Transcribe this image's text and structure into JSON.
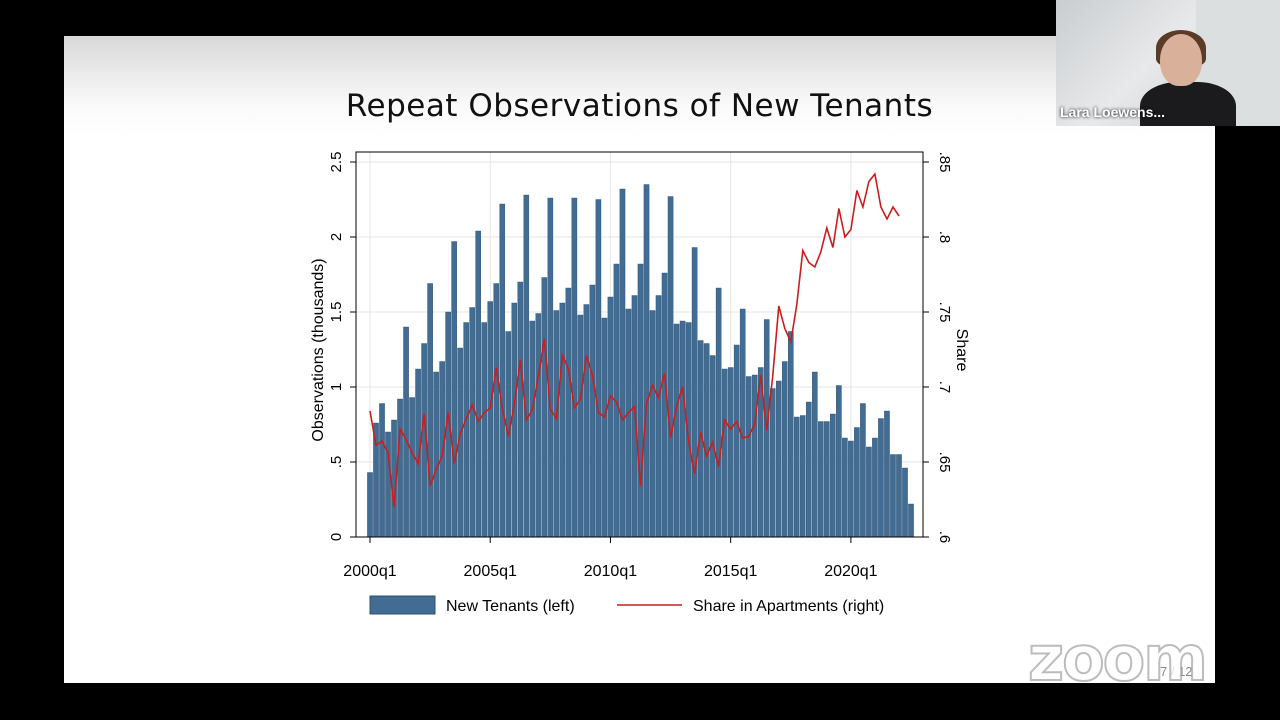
{
  "slide": {
    "title": "Repeat Observations of New Tenants",
    "page": "7 / 12"
  },
  "video": {
    "participant_name": "Lara Loewens..."
  },
  "watermark": "zoom",
  "colors": {
    "bar": "#436c92",
    "line": "#cc1d1d"
  },
  "chart_data": {
    "type": "bar",
    "x_label": "",
    "y_left_label": "Observations (thousands)",
    "y_right_label": "Share",
    "y_left_ticks": [
      "0",
      ".5",
      "1",
      "1.5",
      "2",
      "2.5"
    ],
    "y_right_ticks": [
      ".6",
      ".65",
      ".7",
      ".75",
      ".8",
      ".85"
    ],
    "ylim_left": [
      0,
      2.5
    ],
    "ylim_right": [
      0.6,
      0.85
    ],
    "x_ticks": [
      "2000q1",
      "2005q1",
      "2010q1",
      "2015q1",
      "2020q1"
    ],
    "grid": true,
    "legend_position": "bottom",
    "series": [
      {
        "name": "New Tenants (left)",
        "type": "bar",
        "values": [
          0.43,
          0.76,
          0.89,
          0.7,
          0.78,
          0.92,
          1.4,
          0.93,
          1.12,
          1.29,
          1.69,
          1.1,
          1.17,
          1.5,
          1.97,
          1.26,
          1.43,
          1.53,
          2.04,
          1.43,
          1.57,
          1.69,
          2.22,
          1.37,
          1.56,
          1.7,
          2.28,
          1.44,
          1.49,
          1.73,
          2.26,
          1.51,
          1.56,
          1.66,
          2.26,
          1.48,
          1.55,
          1.68,
          2.25,
          1.46,
          1.6,
          1.82,
          2.32,
          1.52,
          1.61,
          1.82,
          2.35,
          1.51,
          1.61,
          1.76,
          2.27,
          1.42,
          1.44,
          1.43,
          1.93,
          1.31,
          1.29,
          1.21,
          1.66,
          1.12,
          1.13,
          1.28,
          1.52,
          1.07,
          1.08,
          1.13,
          1.45,
          0.99,
          1.04,
          1.17,
          1.37,
          0.8,
          0.81,
          0.9,
          1.1,
          0.77,
          0.77,
          0.82,
          1.01,
          0.66,
          0.64,
          0.73,
          0.89,
          0.6,
          0.66,
          0.79,
          0.84,
          0.55,
          0.55,
          0.46,
          0.22
        ]
      },
      {
        "name": "Share in Apartments (right)",
        "type": "line",
        "values": [
          0.684,
          0.661,
          0.664,
          0.656,
          0.62,
          0.672,
          0.665,
          0.656,
          0.649,
          0.682,
          0.634,
          0.645,
          0.654,
          0.683,
          0.649,
          0.669,
          0.679,
          0.688,
          0.677,
          0.683,
          0.686,
          0.713,
          0.686,
          0.667,
          0.689,
          0.718,
          0.678,
          0.685,
          0.707,
          0.732,
          0.685,
          0.679,
          0.721,
          0.712,
          0.686,
          0.692,
          0.721,
          0.708,
          0.683,
          0.68,
          0.694,
          0.69,
          0.678,
          0.683,
          0.687,
          0.634,
          0.689,
          0.701,
          0.693,
          0.709,
          0.666,
          0.687,
          0.7,
          0.664,
          0.642,
          0.67,
          0.654,
          0.663,
          0.647,
          0.678,
          0.672,
          0.677,
          0.666,
          0.667,
          0.675,
          0.708,
          0.671,
          0.707,
          0.754,
          0.739,
          0.73,
          0.755,
          0.791,
          0.783,
          0.78,
          0.79,
          0.806,
          0.793,
          0.819,
          0.8,
          0.805,
          0.831,
          0.82,
          0.837,
          0.842,
          0.82,
          0.812,
          0.82,
          0.814
        ]
      }
    ]
  }
}
